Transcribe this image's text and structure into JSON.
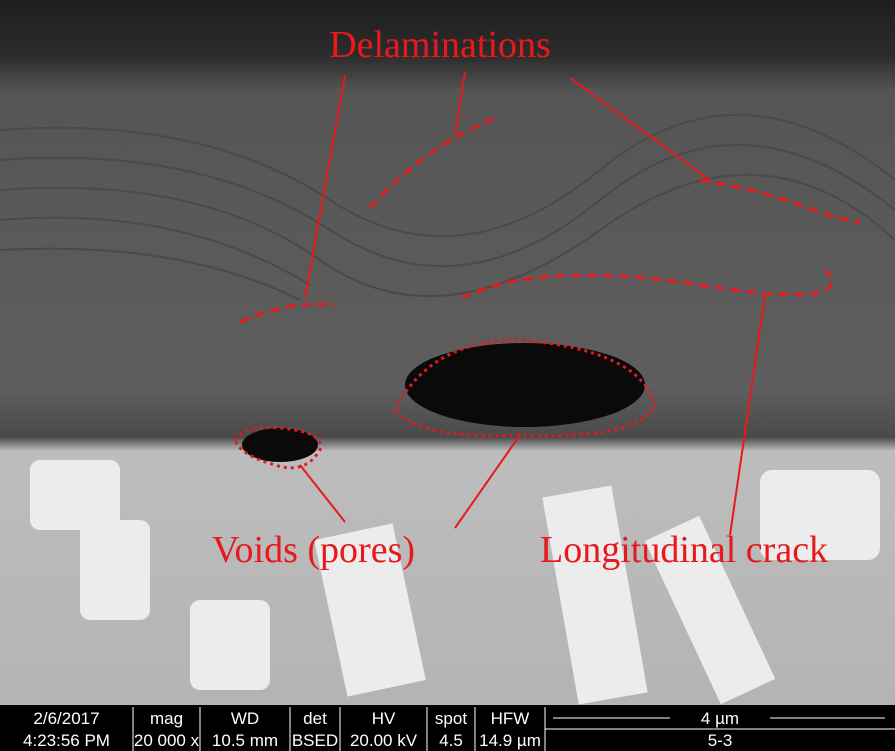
{
  "annotations": {
    "labels": [
      "Delaminations",
      "Voids (pores)",
      "Longitudinal crack"
    ]
  },
  "info_bar": {
    "columns": [
      {
        "header": "2/6/2017",
        "value": "4:23:56 PM"
      },
      {
        "header": "mag",
        "value": "20 000 x"
      },
      {
        "header": "WD",
        "value": "10.5 mm"
      },
      {
        "header": "det",
        "value": "BSED"
      },
      {
        "header": "HV",
        "value": "20.00 kV"
      },
      {
        "header": "spot",
        "value": "4.5"
      },
      {
        "header": "HFW",
        "value": "14.9 µm"
      }
    ],
    "scale_bar": "4 µm",
    "sample_id": "5-3"
  }
}
